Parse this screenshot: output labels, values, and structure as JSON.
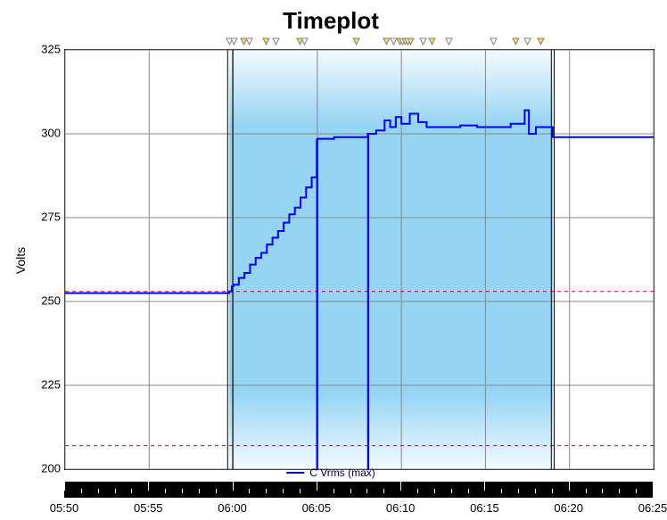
{
  "chart": {
    "type": "line",
    "title": "Timeplot",
    "title_fontsize": 26,
    "ylabel": "Volts",
    "label_fontsize": 14,
    "background_color": "#ffffff",
    "plot_border_color": "#000000",
    "grid_color": "#888888",
    "ylim": [
      200,
      325
    ],
    "yticks": [
      200,
      225,
      250,
      275,
      300,
      325
    ],
    "xticks": [
      "05:50",
      "05:55",
      "06:00",
      "06:05",
      "06:10",
      "06:15",
      "06:20",
      "06:25"
    ],
    "x_range_seconds": [
      21000,
      23100
    ],
    "reference_lines": [
      {
        "y": 253,
        "color": "#dd0000",
        "dash": "4 4"
      },
      {
        "y": 207,
        "color": "#dd0000",
        "dash": "4 4"
      }
    ],
    "highlight_band": {
      "x_start": 21585,
      "x_end": 22740,
      "color_mid": "#96d4f4",
      "color_edge": "rgba(150,212,244,0.10)"
    },
    "vertical_lines": [
      {
        "x": 21580,
        "color": "#000000",
        "width": 1
      },
      {
        "x": 21598,
        "color": "#000000",
        "width": 1
      },
      {
        "x": 22735,
        "color": "#000000",
        "width": 1
      },
      {
        "x": 22745,
        "color": "#000000",
        "width": 1
      }
    ],
    "event_markers": {
      "row_y_top": 42,
      "outline_color": "#808080",
      "fill_yellow": "#f5e050",
      "fill_white": "#ffffff",
      "positions": [
        {
          "x": 21590,
          "fill": "white"
        },
        {
          "x": 21605,
          "fill": "white"
        },
        {
          "x": 21640,
          "fill": "yellow"
        },
        {
          "x": 21660,
          "fill": "white"
        },
        {
          "x": 21720,
          "fill": "yellow"
        },
        {
          "x": 21755,
          "fill": "white"
        },
        {
          "x": 21840,
          "fill": "yellow"
        },
        {
          "x": 21855,
          "fill": "white"
        },
        {
          "x": 22040,
          "fill": "yellow"
        },
        {
          "x": 22150,
          "fill": "yellow"
        },
        {
          "x": 22175,
          "fill": "white"
        },
        {
          "x": 22195,
          "fill": "yellow"
        },
        {
          "x": 22205,
          "fill": "white"
        },
        {
          "x": 22215,
          "fill": "yellow"
        },
        {
          "x": 22225,
          "fill": "white"
        },
        {
          "x": 22235,
          "fill": "yellow"
        },
        {
          "x": 22280,
          "fill": "white"
        },
        {
          "x": 22310,
          "fill": "yellow"
        },
        {
          "x": 22370,
          "fill": "white"
        },
        {
          "x": 22530,
          "fill": "white"
        },
        {
          "x": 22610,
          "fill": "yellow"
        },
        {
          "x": 22650,
          "fill": "white"
        },
        {
          "x": 22700,
          "fill": "yellow"
        }
      ]
    },
    "series": [
      {
        "name": "C Vrms (max)",
        "color": "#0000ff",
        "line_width": 2,
        "step": true,
        "points": [
          [
            21000,
            252.5
          ],
          [
            21580,
            252.5
          ],
          [
            21585,
            253.0
          ],
          [
            21595,
            254.5
          ],
          [
            21600,
            255.0
          ],
          [
            21620,
            257.0
          ],
          [
            21640,
            258.5
          ],
          [
            21660,
            261.0
          ],
          [
            21680,
            263.0
          ],
          [
            21700,
            264.5
          ],
          [
            21720,
            267.0
          ],
          [
            21740,
            269.0
          ],
          [
            21760,
            271.0
          ],
          [
            21780,
            273.5
          ],
          [
            21800,
            276.0
          ],
          [
            21820,
            278.0
          ],
          [
            21840,
            281.0
          ],
          [
            21860,
            284.0
          ],
          [
            21880,
            287.0
          ],
          [
            21898,
            298.0
          ],
          [
            21899,
            200.0
          ],
          [
            21900,
            298.5
          ],
          [
            21960,
            299.0
          ],
          [
            22020,
            299.0
          ],
          [
            22080,
            300.0
          ],
          [
            22081,
            200.0
          ],
          [
            22082,
            300.0
          ],
          [
            22110,
            301.0
          ],
          [
            22140,
            304.0
          ],
          [
            22160,
            302.0
          ],
          [
            22180,
            305.0
          ],
          [
            22200,
            303.0
          ],
          [
            22230,
            306.0
          ],
          [
            22260,
            303.5
          ],
          [
            22290,
            302.0
          ],
          [
            22350,
            302.0
          ],
          [
            22410,
            302.5
          ],
          [
            22470,
            302.0
          ],
          [
            22530,
            302.0
          ],
          [
            22590,
            303.0
          ],
          [
            22640,
            307.0
          ],
          [
            22655,
            300.0
          ],
          [
            22680,
            302.0
          ],
          [
            22740,
            299.0
          ],
          [
            22800,
            299.0
          ],
          [
            22900,
            299.0
          ],
          [
            23100,
            299.0
          ]
        ]
      }
    ],
    "legend": {
      "position": "bottom-center",
      "label": "C Vrms (max)",
      "text_color": "#000040"
    },
    "timeline_bar": {
      "background": "#000000",
      "tick_color": "#ffffff"
    }
  }
}
